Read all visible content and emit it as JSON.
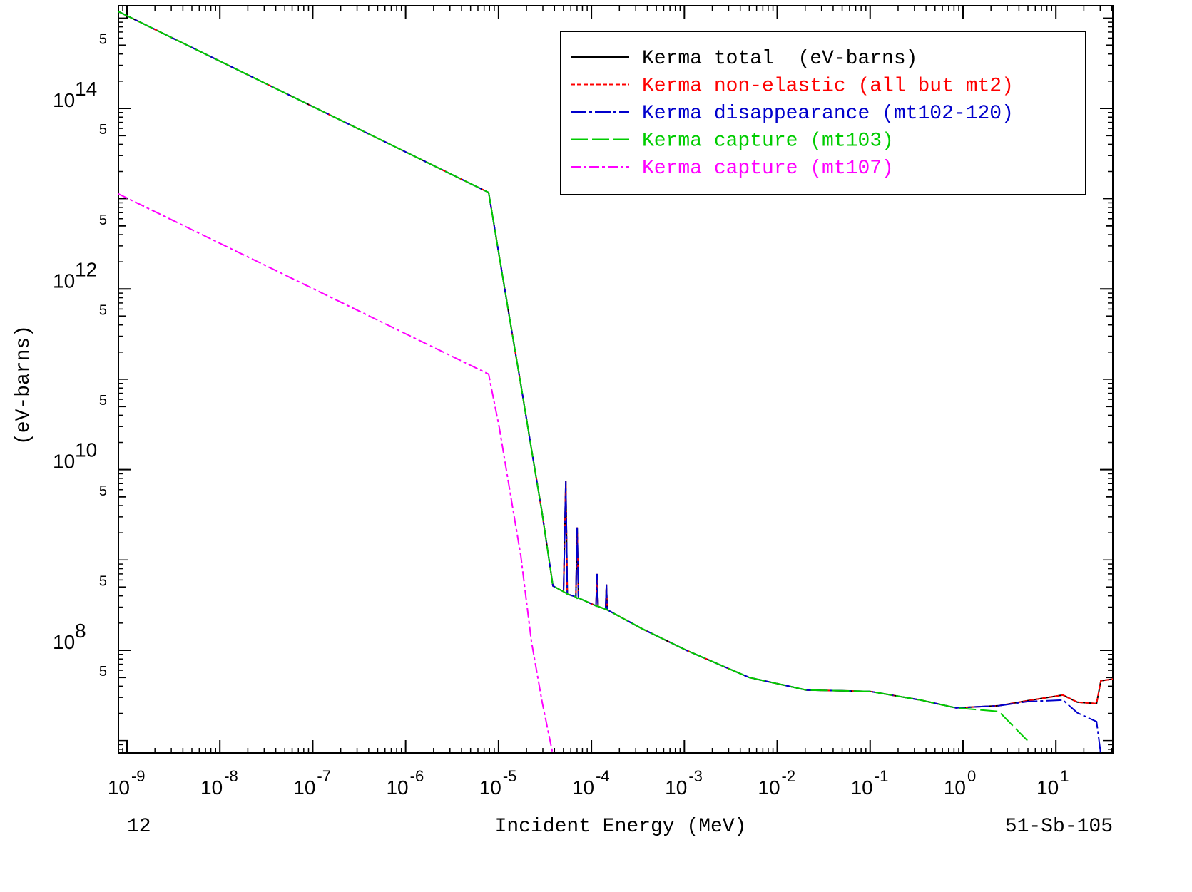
{
  "chart_data": {
    "type": "line",
    "xlabel": "Incident Energy (MeV)",
    "ylabel": "(eV-barns)",
    "corner_left": "12",
    "corner_right": "51-Sb-105",
    "xscale": "log",
    "yscale": "log",
    "legend": "top-right",
    "xlim": [
      8.09e-10,
      41
    ],
    "ylim": [
      7290000.0,
      1370000000000000.0
    ],
    "xticks": [
      {
        "value": 1e-09,
        "label": "10",
        "exponent": "-9"
      },
      {
        "value": 1e-08,
        "label": "10",
        "exponent": "-8"
      },
      {
        "value": 1e-07,
        "label": "10",
        "exponent": "-7"
      },
      {
        "value": 1e-06,
        "label": "10",
        "exponent": "-6"
      },
      {
        "value": 1e-05,
        "label": "10",
        "exponent": "-5"
      },
      {
        "value": 0.0001,
        "label": "10",
        "exponent": "-4"
      },
      {
        "value": 0.001,
        "label": "10",
        "exponent": "-3"
      },
      {
        "value": 0.01,
        "label": "10",
        "exponent": "-2"
      },
      {
        "value": 0.1,
        "label": "10",
        "exponent": "-1"
      },
      {
        "value": 1,
        "label": "10",
        "exponent": "0"
      },
      {
        "value": 10,
        "label": "10",
        "exponent": "1"
      }
    ],
    "yticks": [
      {
        "value": 500000000000000.0,
        "label": "5"
      },
      {
        "value": 100000000000000.0,
        "label": "10",
        "exponent": "14"
      },
      {
        "value": 50000000000000.0,
        "label": "5"
      },
      {
        "value": 5000000000000.0,
        "label": "5"
      },
      {
        "value": 1000000000000.0,
        "label": "10",
        "exponent": "12"
      },
      {
        "value": 500000000000.0,
        "label": "5"
      },
      {
        "value": 50000000000.0,
        "label": "5"
      },
      {
        "value": 10000000000.0,
        "label": "10",
        "exponent": "10"
      },
      {
        "value": 5000000000.0,
        "label": "5"
      },
      {
        "value": 500000000.0,
        "label": "5"
      },
      {
        "value": 100000000.0,
        "label": "10",
        "exponent": "8"
      },
      {
        "value": 50000000.0,
        "label": "5"
      }
    ],
    "x": [
      8.09e-10,
      7.83e-06,
      8.55e-06,
      1.02e-05,
      1.33e-05,
      1.74e-05,
      2.26e-05,
      2.95e-05,
      3.85e-05,
      5.01e-05,
      5.3e-05,
      5.5e-05,
      6.8e-05,
      7.02e-05,
      7.25e-05,
      0.000112,
      0.000115,
      0.000118,
      0.000142,
      0.000145,
      0.000148,
      0.000351,
      0.00105,
      0.00498,
      0.0205,
      0.1,
      0.348,
      0.84,
      2.43,
      4.93,
      11.9,
      17,
      27.4,
      30.5,
      41
    ],
    "series": [
      {
        "name": "Kerma total  (eV-barns)",
        "color": "#000000",
        "dash": "none",
        "values": [
          1180000000000000.0,
          11700000000000.0,
          6800000000000.0,
          2280000000000.0,
          445000000000.0,
          87000000000.0,
          16900000000.0,
          3290000000.0,
          515000000.0,
          446000000.0,
          7450000000.0,
          420000000.0,
          390000000.0,
          2290000000.0,
          380000000.0,
          310000000.0,
          700000000.0,
          305000000.0,
          285000000.0,
          535000000.0,
          280000000.0,
          173000000.0,
          100000000.0,
          50000000.0,
          36300000.0,
          35000000.0,
          28100000.0,
          23000000.0,
          24300000.0,
          27600000.0,
          31900000.0,
          26600000.0,
          25700000.0,
          45900000.0,
          48000000.0
        ]
      },
      {
        "name": "Kerma non-elastic (all but mt2)",
        "color": "#ff0000",
        "dash": "6 3",
        "values": [
          1180000000000000.0,
          11700000000000.0,
          6800000000000.0,
          2280000000000.0,
          445000000000.0,
          87000000000.0,
          16900000000.0,
          3290000000.0,
          515000000.0,
          446000000.0,
          7450000000.0,
          420000000.0,
          390000000.0,
          2290000000.0,
          380000000.0,
          310000000.0,
          700000000.0,
          305000000.0,
          285000000.0,
          535000000.0,
          280000000.0,
          173000000.0,
          100000000.0,
          50000000.0,
          36300000.0,
          35000000.0,
          28100000.0,
          23000000.0,
          24300000.0,
          27600000.0,
          31900000.0,
          26600000.0,
          25700000.0,
          45900000.0,
          48000000.0
        ]
      },
      {
        "name": "Kerma disappearance (mt102-120)",
        "color": "#0000cc",
        "dash": "22 4 4 4",
        "values": [
          1180000000000000.0,
          11700000000000.0,
          6800000000000.0,
          2280000000000.0,
          445000000000.0,
          87000000000.0,
          16900000000.0,
          3290000000.0,
          515000000.0,
          446000000.0,
          7450000000.0,
          420000000.0,
          390000000.0,
          2290000000.0,
          380000000.0,
          310000000.0,
          700000000.0,
          305000000.0,
          285000000.0,
          535000000.0,
          280000000.0,
          173000000.0,
          100000000.0,
          50000000.0,
          36300000.0,
          35000000.0,
          28100000.0,
          23000000.0,
          24300000.0,
          27000000.0,
          28100000.0,
          20300000.0,
          16200000.0,
          7000000.0,
          null
        ]
      },
      {
        "name": "Kerma capture (mt103)",
        "color": "#00cc00",
        "dash": "24 6",
        "values": [
          1180000000000000.0,
          11700000000000.0,
          6800000000000.0,
          2280000000000.0,
          445000000000.0,
          87000000000.0,
          16900000000.0,
          3290000000.0,
          515000000.0,
          446000000.0,
          430000000.0,
          420000000.0,
          390000000.0,
          375000000.0,
          380000000.0,
          310000000.0,
          308000000.0,
          305000000.0,
          285000000.0,
          282000000.0,
          280000000.0,
          173000000.0,
          100000000.0,
          50000000.0,
          36300000.0,
          35000000.0,
          28100000.0,
          23000000.0,
          21000000.0,
          10000000.0,
          null,
          null,
          null,
          null,
          null
        ]
      },
      {
        "name": "Kerma capture (mt107)",
        "color": "#ff00ff",
        "dash": "14 4 4 4",
        "values": [
          11300000000000.0,
          114000000000.0,
          72000000000.0,
          29100000000.0,
          5670000000.0,
          1100000000.0,
          125000000.0,
          26600000.0,
          7000000.0,
          null,
          null,
          null,
          null,
          null,
          null,
          null,
          null,
          null,
          null,
          null,
          null,
          null,
          null,
          null,
          null,
          null,
          null,
          null,
          null,
          null,
          null,
          null,
          null,
          null,
          null
        ]
      }
    ]
  }
}
